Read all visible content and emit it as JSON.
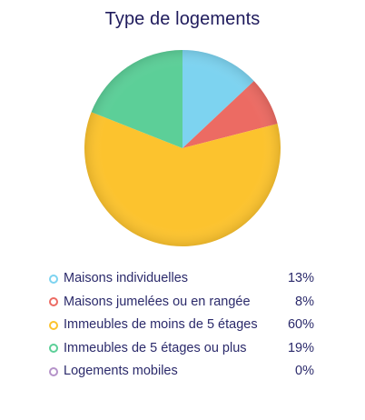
{
  "chart_data": {
    "type": "pie",
    "title": "Type de logements",
    "slices": [
      {
        "label": "Maisons individuelles",
        "value": 13,
        "display": "13%",
        "color": "#7dd3f0"
      },
      {
        "label": "Maisons jumelées ou en rangée",
        "value": 8,
        "display": "8%",
        "color": "#ec6b63"
      },
      {
        "label": "Immeubles de moins de 5 étages",
        "value": 60,
        "display": "60%",
        "color": "#fcc32e"
      },
      {
        "label": "Immeubles de 5 étages ou plus",
        "value": 19,
        "display": "19%",
        "color": "#5ccf98"
      },
      {
        "label": "Logements mobiles",
        "value": 0,
        "display": "0%",
        "color": "#b593c9"
      }
    ]
  }
}
